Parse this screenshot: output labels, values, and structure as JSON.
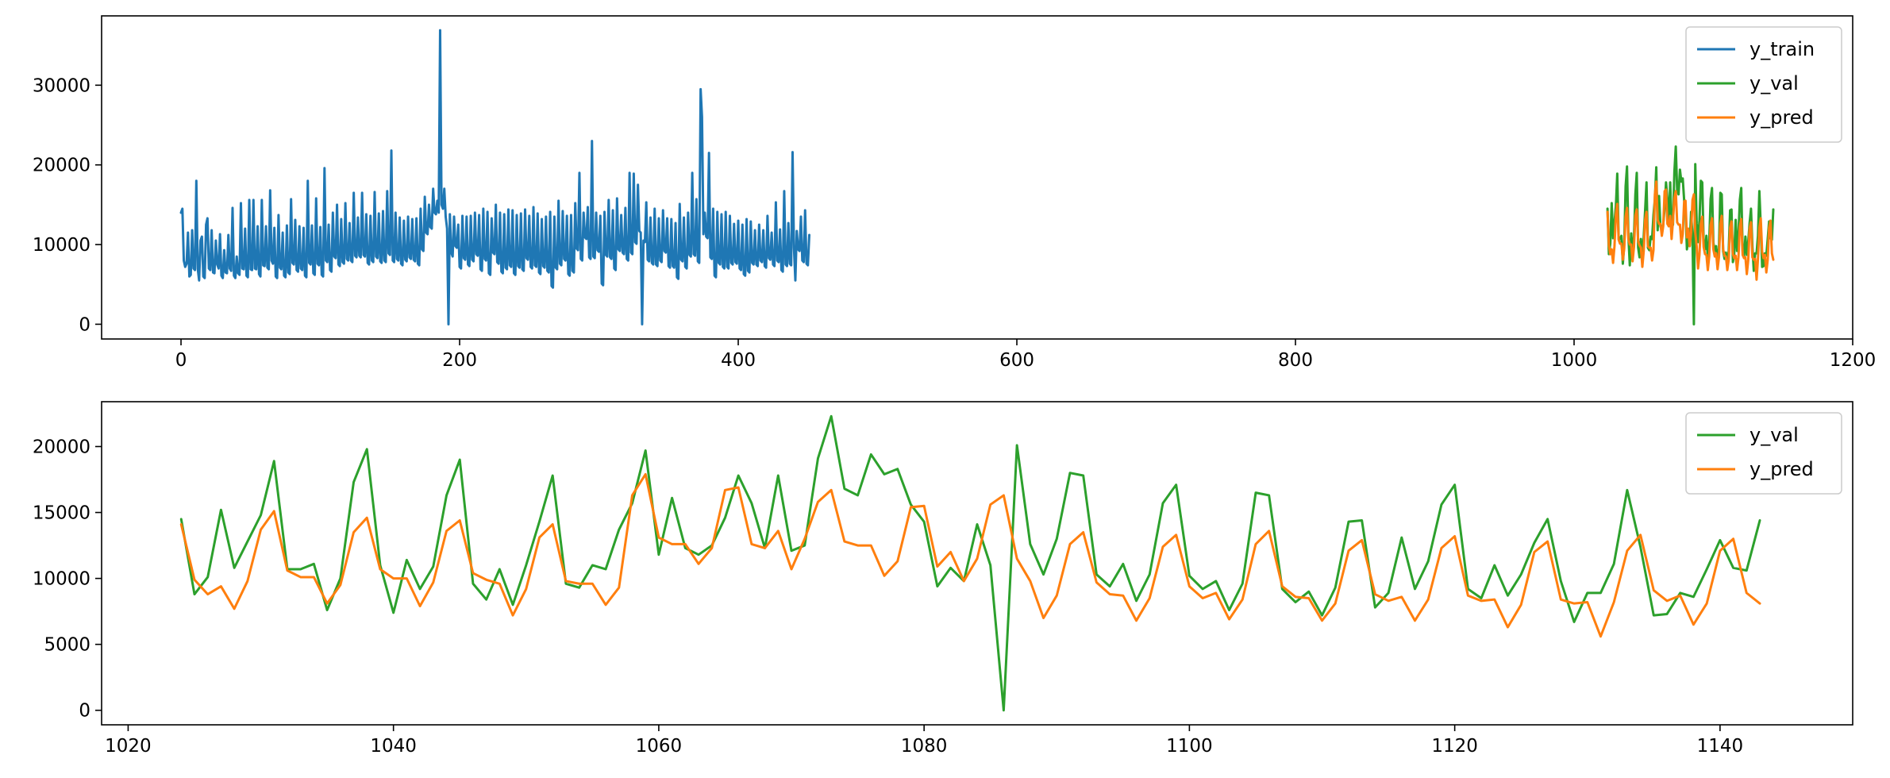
{
  "chart_data": [
    {
      "type": "line",
      "title": "",
      "xlabel": "",
      "ylabel": "",
      "xlim": [
        -57,
        1200
      ],
      "ylim": [
        -1850,
        38700
      ],
      "xticks": [
        0,
        200,
        400,
        600,
        800,
        1000,
        1200
      ],
      "yticks": [
        0,
        10000,
        20000,
        30000
      ],
      "grid": false,
      "legend_position": "top-right",
      "series": [
        {
          "name": "y_train",
          "color": "#1f77b4",
          "x_start": 0,
          "values": [
            14000,
            14500,
            8000,
            7200,
            7600,
            11500,
            6000,
            6200,
            11800,
            7000,
            6800,
            18000,
            7000,
            5500,
            10500,
            11000,
            6000,
            5800,
            12500,
            13300,
            7000,
            6800,
            11800,
            6500,
            6400,
            10500,
            7500,
            7000,
            11300,
            6100,
            5800,
            9300,
            6500,
            6400,
            11200,
            7000,
            6700,
            14600,
            6100,
            5800,
            8500,
            6400,
            6200,
            15200,
            7000,
            6900,
            12000,
            6100,
            5900,
            15600,
            6900,
            6800,
            15600,
            7000,
            6900,
            12300,
            6300,
            6000,
            15600,
            7400,
            7300,
            12300,
            7100,
            6900,
            16800,
            8000,
            7600,
            12100,
            6000,
            5800,
            13700,
            7100,
            6900,
            11500,
            6100,
            5900,
            12400,
            6500,
            6300,
            15700,
            7700,
            7500,
            13100,
            6800,
            6600,
            12300,
            7000,
            6800,
            12100,
            6100,
            5900,
            18000,
            7700,
            7500,
            12400,
            6400,
            6200,
            15800,
            7600,
            7400,
            12200,
            6200,
            6000,
            19600,
            8000,
            7800,
            12500,
            6800,
            6600,
            14000,
            8500,
            8300,
            15000,
            7500,
            7300,
            13200,
            7800,
            7600,
            15200,
            8200,
            8000,
            12700,
            8000,
            7800,
            16500,
            8600,
            8400,
            13400,
            8600,
            8400,
            16500,
            8700,
            8500,
            13800,
            7700,
            7500,
            13600,
            8000,
            7800,
            16600,
            8500,
            8300,
            13900,
            7900,
            7700,
            14200,
            8000,
            7800,
            16700,
            8900,
            8700,
            21800,
            8000,
            7800,
            14000,
            8200,
            8000,
            13400,
            7600,
            7400,
            13000,
            8100,
            7900,
            13500,
            8400,
            8200,
            13200,
            8100,
            7900,
            13300,
            7600,
            7400,
            14500,
            9400,
            9200,
            16000,
            11500,
            11300,
            15000,
            12200,
            12000,
            17000,
            14000,
            13800,
            15500,
            14000,
            36900,
            15000,
            14500,
            17000,
            13500,
            12000,
            0,
            13800,
            9000,
            8500,
            13500,
            9800,
            9600,
            12500,
            7200,
            7000,
            13600,
            8300,
            8100,
            13500,
            7500,
            7300,
            13600,
            8100,
            7900,
            14000,
            8800,
            8600,
            13700,
            6900,
            6700,
            14500,
            8200,
            8000,
            14100,
            6400,
            6200,
            13300,
            9000,
            8800,
            15000,
            7800,
            7600,
            14000,
            6600,
            6400,
            13800,
            7100,
            6900,
            14400,
            7400,
            7200,
            14300,
            6400,
            6200,
            13700,
            7300,
            7100,
            13900,
            6900,
            6700,
            14400,
            8300,
            8100,
            13600,
            7200,
            7000,
            14700,
            7400,
            7200,
            13900,
            6500,
            6300,
            13200,
            7300,
            7100,
            13500,
            6700,
            6500,
            14100,
            4800,
            4600,
            13500,
            7100,
            6900,
            15500,
            7600,
            7400,
            14200,
            8200,
            8000,
            13600,
            6300,
            6100,
            13700,
            6700,
            6500,
            15200,
            9500,
            9300,
            19000,
            8200,
            8000,
            14000,
            10900,
            10700,
            14700,
            8400,
            8200,
            23000,
            8500,
            8300,
            14000,
            9300,
            9100,
            13600,
            5100,
            4900,
            14100,
            8700,
            8500,
            15600,
            8400,
            8200,
            14300,
            7000,
            6800,
            15800,
            9400,
            9200,
            13700,
            9000,
            8800,
            14600,
            8200,
            8000,
            19000,
            9000,
            8800,
            18900,
            10300,
            10100,
            17500,
            11700,
            11500,
            0,
            10500,
            10300,
            15300,
            8100,
            7900,
            13400,
            7700,
            7500,
            14500,
            7500,
            7300,
            13300,
            8000,
            7800,
            14300,
            9200,
            9000,
            13300,
            7300,
            7100,
            13200,
            7300,
            7100,
            12700,
            5900,
            5700,
            15100,
            8100,
            7900,
            13400,
            7200,
            7000,
            14000,
            8700,
            8500,
            19000,
            8800,
            8600,
            15700,
            7900,
            7700,
            29500,
            26000,
            11300,
            14000,
            11000,
            10800,
            21500,
            8400,
            8200,
            14500,
            6100,
            5900,
            14100,
            7700,
            7500,
            13800,
            7200,
            7000,
            14100,
            7200,
            7000,
            13600,
            7700,
            7500,
            12600,
            7800,
            7600,
            13000,
            7000,
            6800,
            12500,
            6300,
            6100,
            13200,
            6700,
            6500,
            12900,
            7700,
            7500,
            11800,
            7500,
            7300,
            12500,
            8000,
            7800,
            11800,
            7300,
            7100,
            13600,
            8300,
            8100,
            11500,
            7500,
            7300,
            15300,
            8000,
            7800,
            11900,
            6800,
            6600,
            16700,
            7500,
            7300,
            12700,
            7600,
            7400,
            21600,
            9600,
            5500,
            11700,
            9400,
            9200,
            13500,
            8000,
            7800,
            14300,
            7600,
            7400,
            11200
          ]
        },
        {
          "name": "y_val",
          "color": "#2ca02c",
          "x": [
            1024,
            1025,
            1026,
            1027,
            1028,
            1029,
            1030,
            1031,
            1032,
            1033,
            1034,
            1035,
            1036,
            1037,
            1038,
            1039,
            1040,
            1041,
            1042,
            1043,
            1044,
            1045,
            1046,
            1047,
            1048,
            1049,
            1050,
            1051,
            1052,
            1053,
            1054,
            1055,
            1056,
            1057,
            1058,
            1059,
            1060,
            1061,
            1062,
            1063,
            1064,
            1065,
            1066,
            1067,
            1068,
            1069,
            1070,
            1071,
            1072,
            1073,
            1074,
            1075,
            1076,
            1077,
            1078,
            1079,
            1080,
            1081,
            1082,
            1083,
            1084,
            1085,
            1086,
            1087,
            1088,
            1089,
            1090,
            1091,
            1092,
            1093,
            1094,
            1095,
            1096,
            1097,
            1098,
            1099,
            1100,
            1101,
            1102,
            1103,
            1104,
            1105,
            1106,
            1107,
            1108,
            1109,
            1110,
            1111,
            1112,
            1113,
            1114,
            1115,
            1116,
            1117,
            1118,
            1119,
            1120,
            1121,
            1122,
            1123,
            1124,
            1125,
            1126,
            1127,
            1128,
            1129,
            1130,
            1131,
            1132,
            1133,
            1134,
            1135,
            1136,
            1137,
            1138,
            1139,
            1140,
            1141,
            1142,
            1143
          ],
          "values": [
            14500,
            8800,
            10100,
            15200,
            10800,
            12800,
            14800,
            18900,
            10700,
            10700,
            11100,
            7600,
            10000,
            17300,
            19800,
            11000,
            7400,
            11400,
            9200,
            10900,
            16300,
            19000,
            9600,
            8400,
            10700,
            8000,
            11000,
            14300,
            17800,
            9600,
            9300,
            11000,
            10700,
            13700,
            15700,
            19700,
            11800,
            16100,
            12300,
            11800,
            12500,
            14600,
            17800,
            15700,
            12300,
            17800,
            12100,
            12500,
            19100,
            22300,
            16800,
            16300,
            19400,
            17900,
            18300,
            15600,
            14300,
            9400,
            10800,
            9800,
            14100,
            11000,
            0,
            20100,
            12600,
            10300,
            13000,
            18000,
            17800,
            10300,
            9400,
            11100,
            8300,
            10300,
            15700,
            17100,
            10200,
            9200,
            9800,
            7600,
            9600,
            16500,
            16300,
            9200,
            8200,
            9000,
            7200,
            9300,
            14300,
            14400,
            7800,
            8900,
            13100,
            9200,
            11300,
            15600,
            17100,
            9200,
            8500,
            11000,
            8700,
            10300,
            12700,
            14500,
            9800,
            6700,
            8900,
            8900,
            11100,
            16700,
            12400,
            7200,
            7300,
            8900,
            8600,
            10700,
            12900,
            10800,
            10600,
            14400
          ]
        },
        {
          "name": "y_pred",
          "color": "#ff7f0e",
          "x": [
            1024,
            1025,
            1026,
            1027,
            1028,
            1029,
            1030,
            1031,
            1032,
            1033,
            1034,
            1035,
            1036,
            1037,
            1038,
            1039,
            1040,
            1041,
            1042,
            1043,
            1044,
            1045,
            1046,
            1047,
            1048,
            1049,
            1050,
            1051,
            1052,
            1053,
            1054,
            1055,
            1056,
            1057,
            1058,
            1059,
            1060,
            1061,
            1062,
            1063,
            1064,
            1065,
            1066,
            1067,
            1068,
            1069,
            1070,
            1071,
            1072,
            1073,
            1074,
            1075,
            1076,
            1077,
            1078,
            1079,
            1080,
            1081,
            1082,
            1083,
            1084,
            1085,
            1086,
            1087,
            1088,
            1089,
            1090,
            1091,
            1092,
            1093,
            1094,
            1095,
            1096,
            1097,
            1098,
            1099,
            1100,
            1101,
            1102,
            1103,
            1104,
            1105,
            1106,
            1107,
            1108,
            1109,
            1110,
            1111,
            1112,
            1113,
            1114,
            1115,
            1116,
            1117,
            1118,
            1119,
            1120,
            1121,
            1122,
            1123,
            1124,
            1125,
            1126,
            1127,
            1128,
            1129,
            1130,
            1131,
            1132,
            1133,
            1134,
            1135,
            1136,
            1137,
            1138,
            1139,
            1140,
            1141,
            1142,
            1143
          ],
          "values": [
            14100,
            9900,
            8800,
            9400,
            7700,
            9800,
            13700,
            15100,
            10600,
            10100,
            10100,
            8100,
            9500,
            13500,
            14600,
            10700,
            10000,
            10000,
            7900,
            9700,
            13600,
            14400,
            10400,
            9900,
            9600,
            7200,
            9200,
            13100,
            14100,
            9800,
            9600,
            9600,
            8000,
            9300,
            16300,
            17900,
            13100,
            12600,
            12600,
            11100,
            12300,
            16700,
            16900,
            12600,
            12300,
            13600,
            10700,
            13000,
            15800,
            16700,
            12800,
            12500,
            12500,
            10200,
            11300,
            15400,
            15500,
            10900,
            12000,
            9800,
            11500,
            15600,
            16300,
            11500,
            9800,
            7000,
            8700,
            12600,
            13500,
            9700,
            8800,
            8700,
            6800,
            8500,
            12400,
            13300,
            9400,
            8500,
            8900,
            6900,
            8400,
            12600,
            13600,
            9400,
            8600,
            8500,
            6800,
            8100,
            12100,
            12900,
            8800,
            8300,
            8600,
            6800,
            8400,
            12300,
            13200,
            8700,
            8300,
            8400,
            6300,
            8000,
            12000,
            12800,
            8400,
            8100,
            8200,
            5600,
            8200,
            12100,
            13300,
            9100,
            8300,
            8700,
            6500,
            8100,
            12100,
            13000,
            8900,
            8100
          ]
        }
      ]
    },
    {
      "type": "line",
      "title": "",
      "xlabel": "",
      "ylabel": "",
      "xlim": [
        1018,
        1150
      ],
      "ylim": [
        -1100,
        23400
      ],
      "xticks": [
        1020,
        1040,
        1060,
        1080,
        1100,
        1120,
        1140
      ],
      "yticks": [
        0,
        5000,
        10000,
        15000,
        20000
      ],
      "grid": false,
      "legend_position": "top-right",
      "series_ref": [
        "y_val",
        "y_pred"
      ]
    }
  ]
}
